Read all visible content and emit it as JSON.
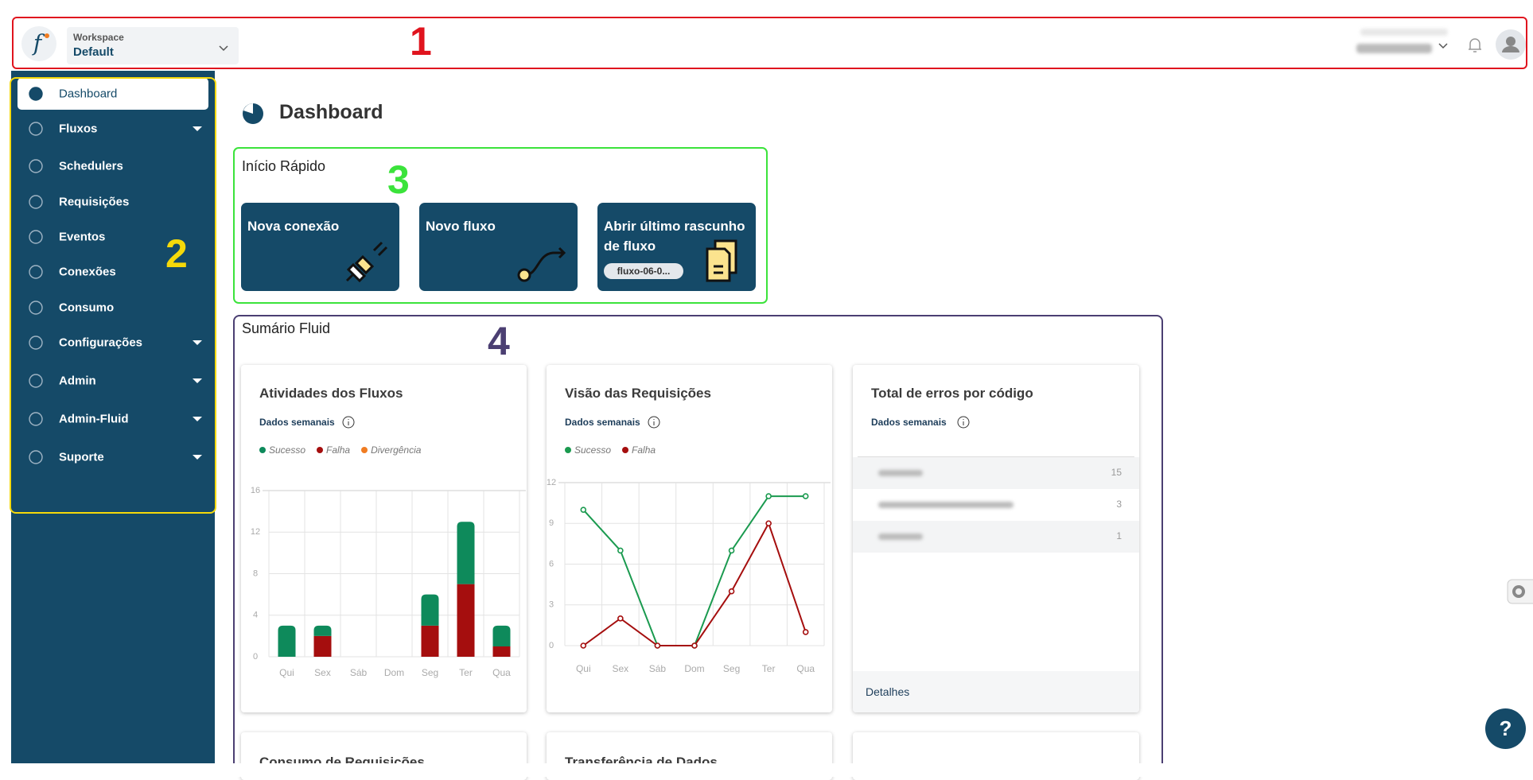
{
  "header": {
    "workspace_label": "Workspace",
    "workspace": "Default"
  },
  "annotations": [
    "1",
    "2",
    "3",
    "4"
  ],
  "sidebar": {
    "items": [
      "Dashboard",
      "Fluxos",
      "Schedulers",
      "Requisições",
      "Eventos",
      "Conexões",
      "Consumo",
      "Configurações",
      "Admin",
      "Admin-Fluid",
      "Suporte"
    ]
  },
  "page_title": "Dashboard",
  "quick_start": {
    "title": "Início Rápido",
    "cards": [
      "Nova conexão",
      "Novo fluxo",
      "Abrir último rascunho de fluxo"
    ],
    "draft": "fluxo-06-0..."
  },
  "summary": {
    "title": "Sumário Fluid",
    "more_cards": [
      "Consumo de Requisições",
      "Transferência de Dados"
    ]
  },
  "chart_data": [
    {
      "type": "bar",
      "stacked": true,
      "title": "Atividades dos Fluxos",
      "subtitle": "Dados semanais",
      "categories": [
        "Qui",
        "Sex",
        "Sáb",
        "Dom",
        "Seg",
        "Ter",
        "Qua"
      ],
      "series": [
        {
          "name": "Sucesso",
          "color": "#0e8a5b",
          "values": [
            3,
            1,
            0,
            0,
            3,
            6,
            2
          ]
        },
        {
          "name": "Falha",
          "color": "#a50e0e",
          "values": [
            0,
            2,
            0,
            0,
            3,
            7,
            1
          ]
        },
        {
          "name": "Divergência",
          "color": "#f07c22",
          "values": [
            0,
            0,
            0,
            0,
            0,
            0,
            0
          ]
        }
      ],
      "ylim": [
        0,
        16
      ],
      "yticks": [
        0,
        4,
        8,
        12,
        16
      ],
      "grid": true
    },
    {
      "type": "line",
      "title": "Visão das Requisições",
      "subtitle": "Dados semanais",
      "categories": [
        "Qui",
        "Sex",
        "Sáb",
        "Dom",
        "Seg",
        "Ter",
        "Qua"
      ],
      "series": [
        {
          "name": "Sucesso",
          "color": "#1a9a4f",
          "values": [
            10,
            7,
            0,
            0,
            7,
            11,
            11
          ]
        },
        {
          "name": "Falha",
          "color": "#a50e0e",
          "values": [
            0,
            2,
            0,
            0,
            4,
            9,
            1
          ]
        }
      ],
      "ylim": [
        0,
        12
      ],
      "yticks": [
        0,
        3,
        6,
        9,
        12
      ],
      "grid": true
    }
  ],
  "errors_table": {
    "title": "Total de erros por código",
    "subtitle": "Dados semanais",
    "counts": [
      15,
      3,
      1
    ],
    "link": "Detalhes"
  },
  "help": "?"
}
